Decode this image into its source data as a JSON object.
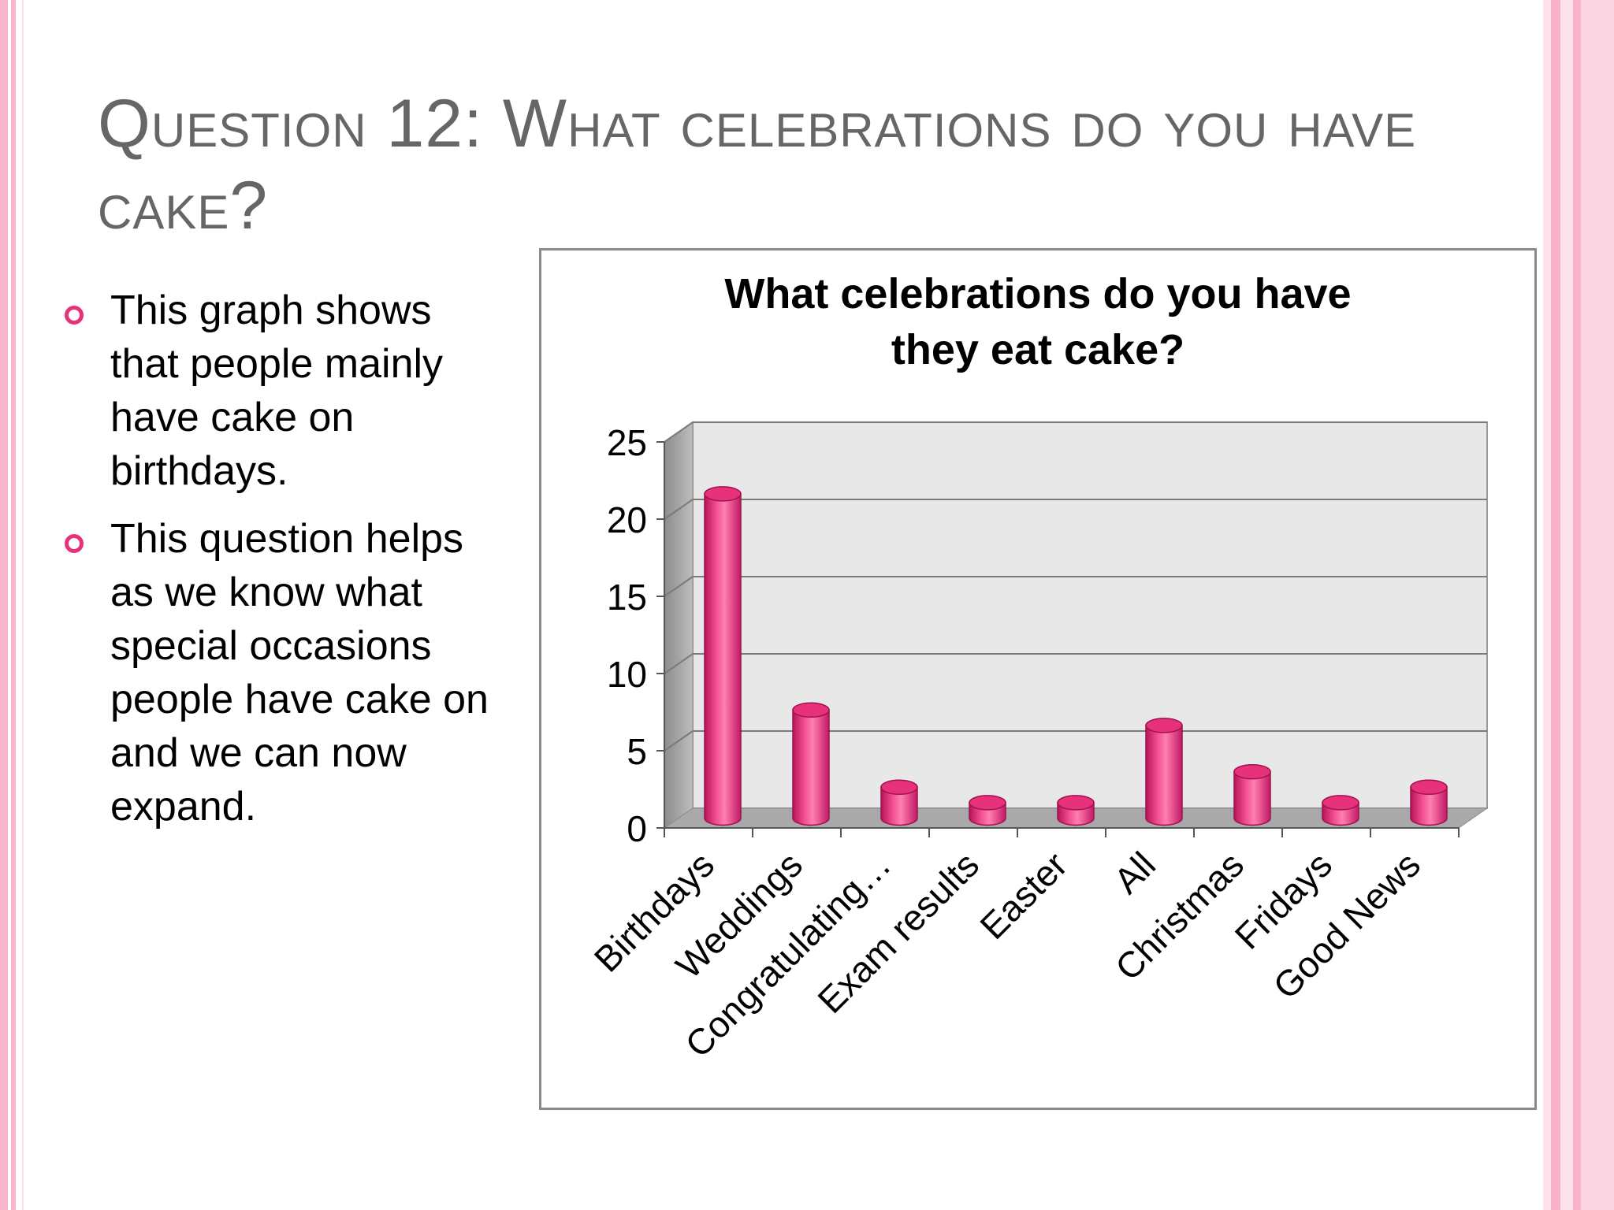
{
  "slide": {
    "title": "Question 12: What celebrations do you have cake?",
    "bullets": [
      "This graph shows that people mainly have cake on birthdays.",
      "This question helps as we know what special occasions people have cake on and we can now expand."
    ]
  },
  "colors": {
    "bar": "#e8317b",
    "bullet_accent": "#e8317b",
    "title": "#666666",
    "stripe": "#f8b7cd"
  },
  "chart_data": {
    "type": "bar",
    "style": "3d-cylinder",
    "title_lines": [
      "What celebrations do you have",
      "they eat cake?"
    ],
    "categories": [
      "Birthdays",
      "Weddings",
      "Congratulating…",
      "Exam results",
      "Easter",
      "All",
      "Christmas",
      "Fridays",
      "Good News"
    ],
    "values": [
      21,
      7,
      2,
      1,
      1,
      6,
      3,
      1,
      2
    ],
    "ylim": [
      0,
      25
    ],
    "yticks": [
      0,
      5,
      10,
      15,
      20,
      25
    ],
    "xlabel": "",
    "ylabel": "",
    "grid": true,
    "legend": false
  }
}
